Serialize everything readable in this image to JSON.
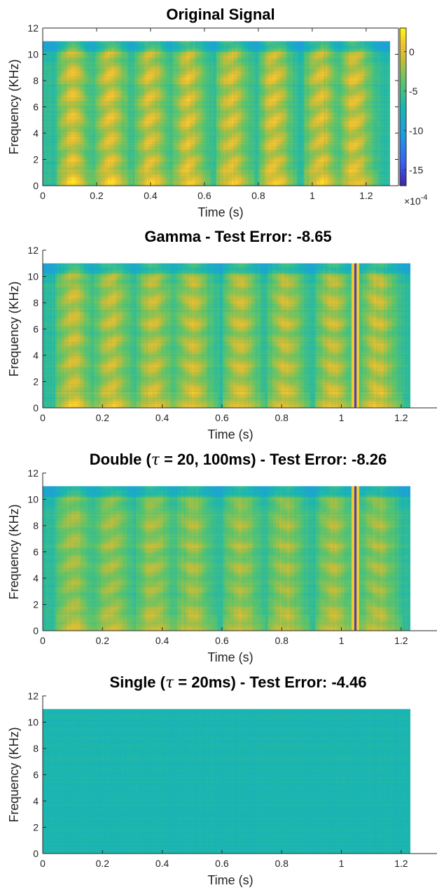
{
  "colors": {
    "viridis_low": "#3e26a8",
    "teal": "#19b7b3",
    "green": "#7dc84f",
    "yellow": "#f9d83c",
    "axis": "#262626"
  },
  "colorbar": {
    "ticks": [
      {
        "value": 0,
        "label": "0"
      },
      {
        "value": -5,
        "label": "-5"
      },
      {
        "value": -10,
        "label": "-10"
      },
      {
        "value": -15,
        "label": "-15"
      }
    ],
    "range": [
      -17,
      3
    ],
    "multiplier_base": "×10",
    "multiplier_exp": "-4"
  },
  "chart_data": [
    {
      "type": "heatmap",
      "title": "Original Signal",
      "title_parts": [
        {
          "t": "Original Signal"
        }
      ],
      "xlabel": "Time (s)",
      "ylabel": "Frequency (KHz)",
      "xlim": [
        0,
        1.32
      ],
      "ylim": [
        0,
        12
      ],
      "xticks": [
        "0",
        "0.2",
        "0.4",
        "0.6",
        "0.8",
        "1",
        "1.2"
      ],
      "yticks": [
        "0",
        "2",
        "4",
        "6",
        "8",
        "10",
        "12"
      ],
      "data_extent": {
        "t_max": 1.29,
        "f_max": 11
      },
      "variant": "original",
      "speech_onsets_s": [
        0.07,
        0.21,
        0.36,
        0.5,
        0.66,
        0.82,
        0.99,
        1.12
      ],
      "artifact_s": null
    },
    {
      "type": "heatmap",
      "title": "Gamma - Test Error: -8.65",
      "title_parts": [
        {
          "t": "Gamma - Test Error: -8.65"
        }
      ],
      "xlabel": "Time (s)",
      "ylabel": "Frequency (KHz)",
      "xlim": [
        0,
        1.32
      ],
      "ylim": [
        0,
        12
      ],
      "xticks": [
        "0",
        "0.2",
        "0.4",
        "0.6",
        "0.8",
        "1",
        "1.2"
      ],
      "yticks": [
        "0",
        "2",
        "4",
        "6",
        "8",
        "10",
        "12"
      ],
      "data_extent": {
        "t_max": 1.23,
        "f_max": 11
      },
      "variant": "gamma",
      "speech_onsets_s": [
        0.06,
        0.19,
        0.33,
        0.46,
        0.62,
        0.77,
        0.93,
        1.08
      ],
      "artifact_s": 1.045
    },
    {
      "type": "heatmap",
      "title": "Double (τ = 20, 100ms) - Test Error: -8.26",
      "title_parts": [
        {
          "t": "Double ("
        },
        {
          "t": "τ",
          "i": true
        },
        {
          "t": " = 20, 100ms) - Test Error: -8.26"
        }
      ],
      "xlabel": "Time (s)",
      "ylabel": "Frequency (KHz)",
      "xlim": [
        0,
        1.32
      ],
      "ylim": [
        0,
        12
      ],
      "xticks": [
        "0",
        "0.2",
        "0.4",
        "0.6",
        "0.8",
        "1",
        "1.2"
      ],
      "yticks": [
        "0",
        "2",
        "4",
        "6",
        "8",
        "10",
        "12"
      ],
      "data_extent": {
        "t_max": 1.23,
        "f_max": 11
      },
      "variant": "double",
      "speech_onsets_s": [
        0.06,
        0.19,
        0.33,
        0.46,
        0.62,
        0.77,
        0.93,
        1.08
      ],
      "artifact_s": 1.045
    },
    {
      "type": "heatmap",
      "title": "Single (τ = 20ms) - Test Error: -4.46",
      "title_parts": [
        {
          "t": "Single ("
        },
        {
          "t": "τ",
          "i": true
        },
        {
          "t": " = 20ms) - Test Error: -4.46"
        }
      ],
      "xlabel": "Time (s)",
      "ylabel": "Frequency (KHz)",
      "xlim": [
        0,
        1.32
      ],
      "ylim": [
        0,
        12
      ],
      "xticks": [
        "0",
        "0.2",
        "0.4",
        "0.6",
        "0.8",
        "1",
        "1.2"
      ],
      "yticks": [
        "0",
        "2",
        "4",
        "6",
        "8",
        "10",
        "12"
      ],
      "data_extent": {
        "t_max": 1.23,
        "f_max": 11
      },
      "variant": "single",
      "speech_onsets_s": [],
      "artifact_s": null
    }
  ]
}
